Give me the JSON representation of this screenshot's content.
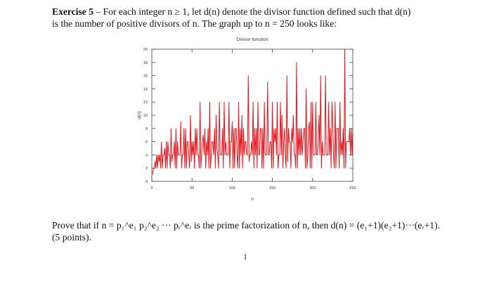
{
  "exercise": {
    "label": "Exercise 5",
    "intro_line1": " – For each integer n ≥ 1, let d(n) denote the divisor function defined such that d(n)",
    "intro_line2": "is the number of positive divisors of n. The graph up to n = 250 looks like:",
    "prove_line1": "Prove that if n = p₁^e₁ p₂^e₂ ··· pᵣ^eᵣ is the prime factorization of n, then d(n) = (e₁+1)(e₂+1)···(eᵣ+1).",
    "prove_line2": "(5 points).",
    "page_number": "1"
  },
  "chart_data": {
    "type": "line",
    "title": "Divisor function",
    "xlabel": "n",
    "ylabel": "d(n)",
    "xlim": [
      0,
      250
    ],
    "ylim": [
      0,
      20
    ],
    "xticks": [
      0,
      50,
      100,
      150,
      200,
      250
    ],
    "yticks": [
      0,
      2,
      4,
      6,
      8,
      10,
      12,
      14,
      16,
      18,
      20
    ],
    "grid": false,
    "legend": null,
    "line_color": "#e8141b",
    "series": [
      {
        "name": "d(n)",
        "x_start": 1,
        "values": [
          1,
          2,
          2,
          3,
          2,
          4,
          2,
          4,
          3,
          4,
          2,
          6,
          2,
          4,
          4,
          5,
          2,
          6,
          2,
          6,
          4,
          4,
          2,
          8,
          3,
          4,
          4,
          6,
          2,
          8,
          2,
          6,
          4,
          4,
          4,
          9,
          2,
          4,
          4,
          8,
          2,
          8,
          2,
          6,
          6,
          4,
          2,
          10,
          3,
          6,
          4,
          6,
          2,
          8,
          4,
          8,
          4,
          4,
          2,
          12,
          2,
          4,
          6,
          7,
          4,
          8,
          2,
          6,
          4,
          8,
          2,
          12,
          2,
          4,
          6,
          6,
          4,
          8,
          2,
          10,
          5,
          4,
          2,
          12,
          4,
          4,
          4,
          8,
          2,
          12,
          4,
          6,
          4,
          4,
          4,
          12,
          2,
          6,
          6,
          9,
          2,
          8,
          2,
          8,
          8,
          4,
          2,
          12,
          2,
          8,
          4,
          10,
          2,
          8,
          4,
          6,
          6,
          4,
          4,
          16,
          3,
          4,
          4,
          6,
          4,
          12,
          2,
          8,
          4,
          8,
          2,
          12,
          4,
          4,
          8,
          8,
          2,
          8,
          2,
          12,
          4,
          4,
          4,
          15,
          4,
          4,
          6,
          6,
          2,
          12,
          2,
          8,
          6,
          8,
          4,
          12,
          2,
          4,
          4,
          12,
          4,
          10,
          2,
          6,
          8,
          4,
          2,
          16,
          3,
          8,
          6,
          6,
          2,
          8,
          6,
          10,
          4,
          4,
          2,
          18,
          2,
          8,
          4,
          8,
          4,
          8,
          4,
          6,
          8,
          8,
          2,
          14,
          2,
          4,
          8,
          9,
          2,
          12,
          2,
          12,
          4,
          4,
          4,
          12,
          4,
          4,
          6,
          10,
          4,
          16,
          2,
          6,
          4,
          4,
          4,
          16,
          4,
          4,
          4,
          12,
          4,
          8,
          2,
          12,
          9,
          4,
          2,
          12,
          2,
          8,
          8,
          8,
          2,
          12,
          4,
          6,
          4,
          8,
          2,
          20,
          2,
          6,
          6,
          6,
          6,
          8,
          4,
          8,
          4,
          8
        ]
      }
    ]
  }
}
